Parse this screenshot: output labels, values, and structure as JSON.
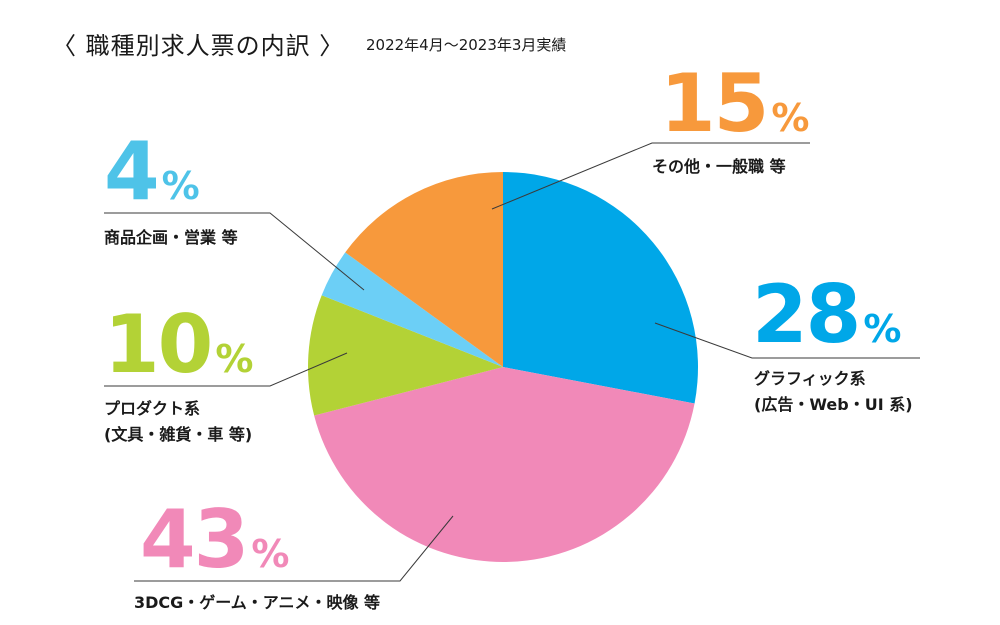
{
  "header": {
    "title": "〈 職種別求人票の内訳 〉",
    "period": "2022年4月〜2023年3月実績"
  },
  "percent_sign": "%",
  "chart_data": {
    "type": "pie",
    "title": "職種別求人票の内訳",
    "subtitle": "2022年4月〜2023年3月実績",
    "start_angle_deg": 0,
    "direction": "clockwise",
    "slices": [
      {
        "value": 28,
        "label_text": "28",
        "line1": "グラフィック系",
        "line2": "(広告・Web・UI 系)",
        "color": "#00a7e8"
      },
      {
        "value": 43,
        "label_text": "43",
        "line1": "3DCG・ゲーム・アニメ・映像 等",
        "line2": "",
        "color": "#f189b8"
      },
      {
        "value": 10,
        "label_text": "10",
        "line1": "プロダクト系",
        "line2": "(文具・雑貨・車 等)",
        "color": "#b3d236"
      },
      {
        "value": 4,
        "label_text": "4",
        "line1": "商品企画・営業 等",
        "line2": "",
        "color": "#6ccff6"
      },
      {
        "value": 15,
        "label_text": "15",
        "line1": "その他・一般職 等",
        "line2": "",
        "color": "#f7993c"
      }
    ]
  }
}
